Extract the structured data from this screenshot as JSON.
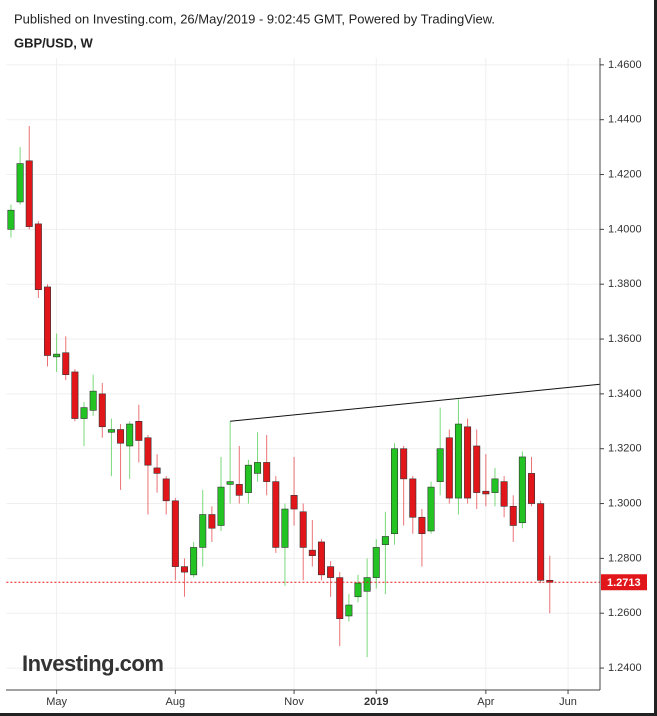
{
  "chart_data": {
    "type": "candlestick",
    "title": "Published on Investing.com, 26/May/2019 - 9:02:45 GMT, Powered by TradingView.",
    "subtitle": "GBP/USD, W",
    "logo": "Investing.com",
    "categories": [
      null,
      null,
      null,
      null,
      null,
      "May",
      null,
      null,
      null,
      null,
      null,
      null,
      null,
      null,
      null,
      null,
      null,
      null,
      "Aug",
      null,
      null,
      null,
      null,
      null,
      null,
      null,
      null,
      null,
      null,
      null,
      null,
      "Nov",
      null,
      null,
      null,
      null,
      null,
      null,
      null,
      null,
      "2019",
      null,
      null,
      null,
      null,
      null,
      null,
      null,
      null,
      null,
      null,
      null,
      "Apr",
      null,
      null,
      null,
      null,
      null,
      null,
      null,
      null,
      "Jun",
      null,
      null,
      null
    ],
    "open": [
      1.4,
      1.41,
      1.425,
      1.402,
      1.379,
      1.3535,
      1.355,
      1.348,
      1.331,
      1.334,
      1.34,
      1.326,
      1.327,
      1.321,
      1.33,
      1.324,
      1.313,
      1.309,
      1.301,
      1.277,
      1.274,
      1.284,
      1.296,
      1.292,
      1.307,
      1.307,
      1.304,
      1.311,
      1.315,
      1.308,
      1.284,
      1.303,
      1.297,
      1.283,
      1.286,
      1.277,
      1.273,
      1.259,
      1.266,
      1.268,
      1.273,
      1.285,
      1.289,
      1.32,
      1.309,
      1.295,
      1.29,
      1.308,
      1.324,
      1.302,
      1.328,
      1.321,
      1.3045,
      1.304,
      1.308,
      1.299,
      1.293,
      1.311,
      1.3,
      1.272,
      null,
      null,
      null,
      null,
      null
    ],
    "high": [
      1.409,
      1.43,
      1.4377,
      1.403,
      1.38,
      1.362,
      1.361,
      1.349,
      1.337,
      1.347,
      1.344,
      1.331,
      1.329,
      1.33,
      1.336,
      1.325,
      1.318,
      1.31,
      1.302,
      1.28,
      1.286,
      1.305,
      1.299,
      1.317,
      1.33,
      1.321,
      1.316,
      1.326,
      1.325,
      1.31,
      1.3,
      1.317,
      1.3,
      1.294,
      1.287,
      1.279,
      1.275,
      1.267,
      1.274,
      1.28,
      1.287,
      1.297,
      1.322,
      1.321,
      1.31,
      1.298,
      1.308,
      1.335,
      1.327,
      1.338,
      1.331,
      1.327,
      1.318,
      1.313,
      1.31,
      1.303,
      1.319,
      1.317,
      1.301,
      1.281,
      null,
      null,
      null,
      null,
      null
    ],
    "low": [
      1.397,
      1.409,
      1.4,
      1.375,
      1.35,
      1.348,
      1.345,
      1.33,
      1.321,
      1.332,
      1.324,
      1.31,
      1.305,
      1.309,
      1.315,
      1.296,
      1.304,
      1.296,
      1.272,
      1.266,
      1.273,
      1.277,
      1.286,
      1.29,
      1.3,
      1.3,
      1.3,
      1.308,
      1.303,
      1.282,
      1.27,
      1.292,
      1.272,
      1.277,
      1.272,
      1.266,
      1.248,
      1.257,
      1.264,
      1.244,
      1.269,
      1.267,
      1.285,
      1.292,
      1.289,
      1.277,
      1.289,
      1.303,
      1.3,
      1.296,
      1.3,
      1.298,
      1.299,
      1.299,
      1.295,
      1.286,
      1.291,
      1.299,
      1.271,
      1.26,
      null,
      null,
      null,
      null,
      null
    ],
    "close": [
      1.407,
      1.424,
      1.401,
      1.378,
      1.354,
      1.3545,
      1.347,
      1.331,
      1.335,
      1.341,
      1.328,
      1.327,
      1.322,
      1.329,
      1.323,
      1.314,
      1.311,
      1.301,
      1.277,
      1.275,
      1.284,
      1.296,
      1.291,
      1.306,
      1.308,
      1.303,
      1.314,
      1.315,
      1.308,
      1.284,
      1.298,
      1.298,
      1.284,
      1.281,
      1.274,
      1.273,
      1.258,
      1.263,
      1.271,
      1.273,
      1.284,
      1.288,
      1.32,
      1.309,
      1.295,
      1.289,
      1.306,
      1.32,
      1.302,
      1.329,
      1.302,
      1.304,
      1.3035,
      1.309,
      1.299,
      1.292,
      1.317,
      1.3,
      1.272,
      1.2713,
      null,
      null,
      null,
      null,
      null
    ],
    "up_color": "#22c322",
    "down_color": "#e0161b",
    "last_color": "#e0161b",
    "trendline": {
      "start": {
        "index": 24,
        "value": 1.33
      },
      "end": {
        "index": 64,
        "value": 1.3435
      }
    },
    "ylim": [
      1.232,
      1.4625
    ],
    "yticks": [
      {
        "value": 1.24,
        "label": "1.2400"
      },
      {
        "value": 1.26,
        "label": "1.2600"
      },
      {
        "value": 1.28,
        "label": "1.2800"
      },
      {
        "value": 1.3,
        "label": "1.3000"
      },
      {
        "value": 1.32,
        "label": "1.3200"
      },
      {
        "value": 1.34,
        "label": "1.3400"
      },
      {
        "value": 1.36,
        "label": "1.3600"
      },
      {
        "value": 1.38,
        "label": "1.3800"
      },
      {
        "value": 1.4,
        "label": "1.4000"
      },
      {
        "value": 1.42,
        "label": "1.4200"
      },
      {
        "value": 1.44,
        "label": "1.4400"
      },
      {
        "value": 1.46,
        "label": "1.4600"
      }
    ],
    "grid": true
  }
}
